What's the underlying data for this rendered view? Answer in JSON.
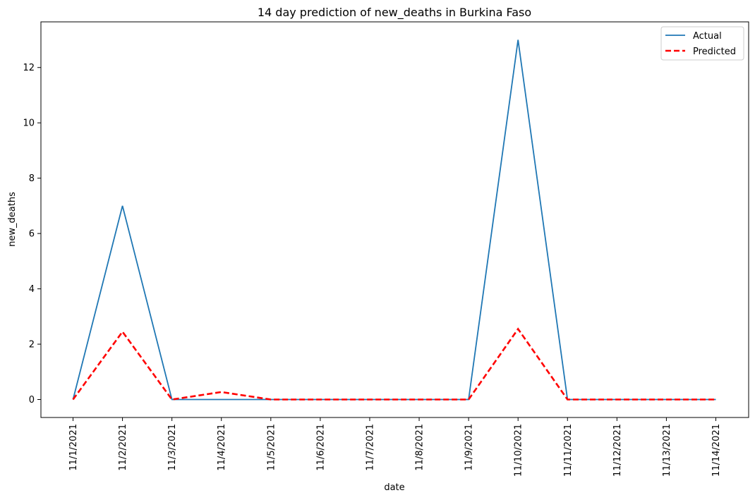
{
  "chart_data": {
    "type": "line",
    "title": "14 day prediction of new_deaths in Burkina Faso",
    "xlabel": "date",
    "ylabel": "new_deaths",
    "categories": [
      "11/1/2021",
      "11/2/2021",
      "11/3/2021",
      "11/4/2021",
      "11/5/2021",
      "11/6/2021",
      "11/7/2021",
      "11/8/2021",
      "11/9/2021",
      "11/10/2021",
      "11/11/2021",
      "11/12/2021",
      "11/13/2021",
      "11/14/2021"
    ],
    "ylim": [
      -0.65,
      13.65
    ],
    "yticks": [
      0,
      2,
      4,
      6,
      8,
      10,
      12
    ],
    "grid": false,
    "legend_position": "top-right",
    "series": [
      {
        "name": "Actual",
        "color": "#1f77b4",
        "style": "solid",
        "values": [
          0,
          7,
          0,
          0,
          0,
          0,
          0,
          0,
          0,
          13,
          0,
          0,
          0,
          0
        ]
      },
      {
        "name": "Predicted",
        "color": "#ff0000",
        "style": "dashed",
        "values": [
          0,
          2.45,
          0,
          0.27,
          0,
          0,
          0,
          0,
          0,
          2.55,
          0,
          0,
          0,
          0
        ]
      }
    ]
  }
}
